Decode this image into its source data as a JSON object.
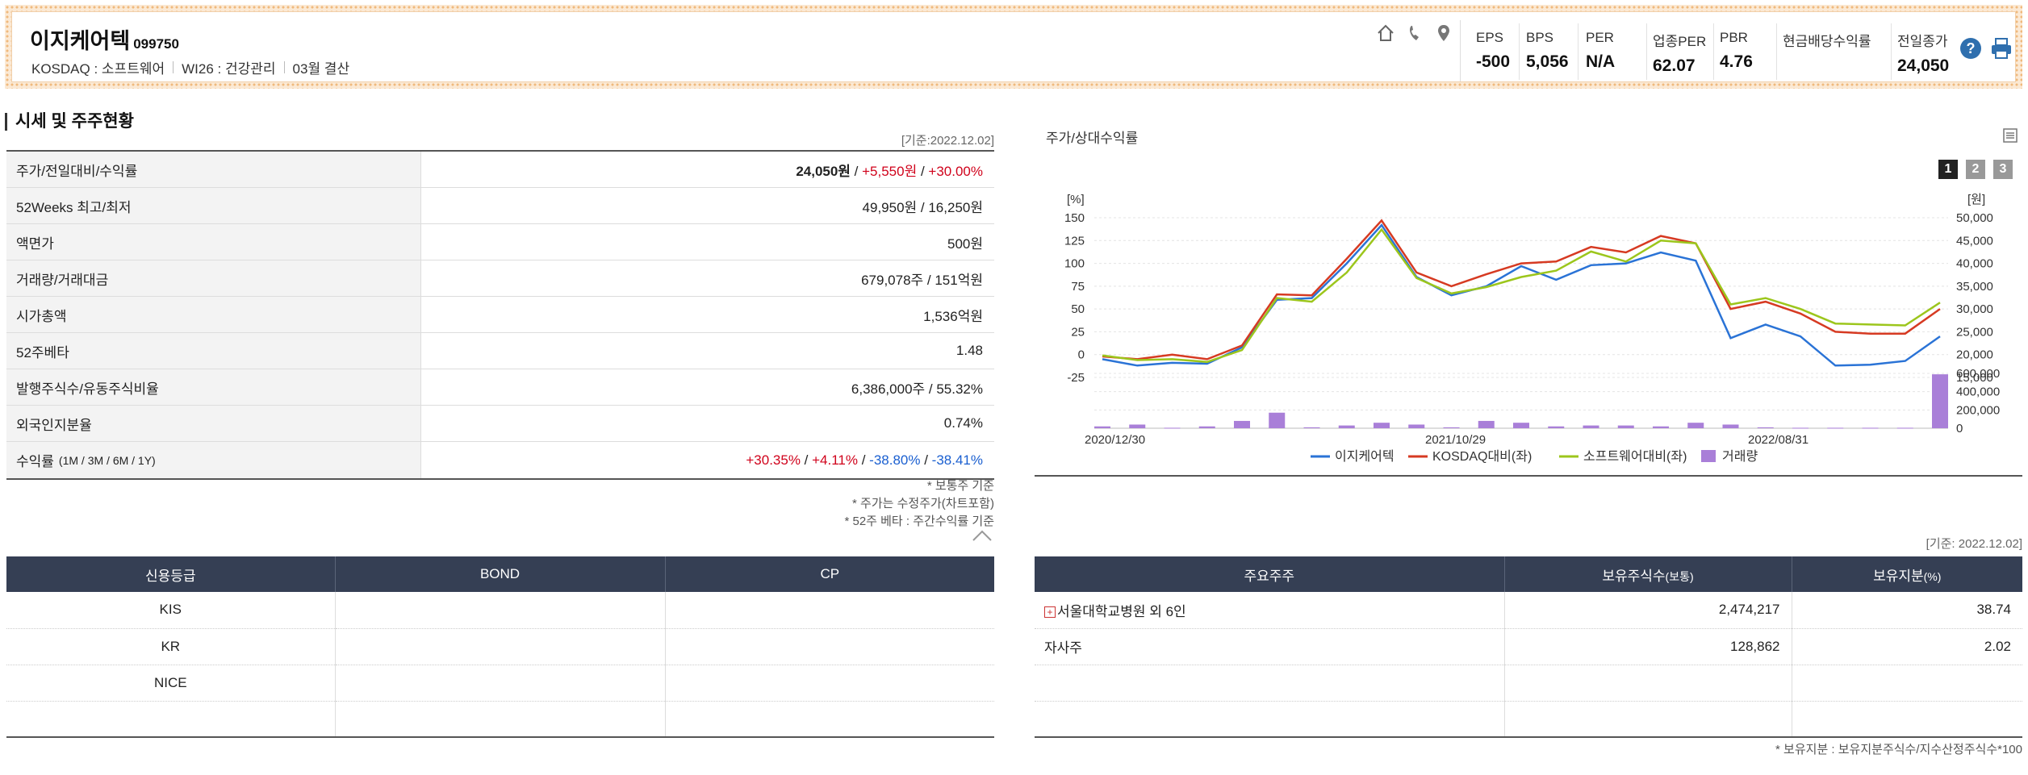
{
  "company": {
    "name": "이지케어텍",
    "code": "099750",
    "market": "KOSDAQ : 소프트웨어",
    "wics": "WI26 : 건강관리",
    "settlement": "03월 결산"
  },
  "icons": [
    "home-icon",
    "phone-icon",
    "location-icon",
    "help-icon",
    "print-icon"
  ],
  "metrics": [
    {
      "label": "EPS",
      "value": "-500"
    },
    {
      "label": "BPS",
      "value": "5,056"
    },
    {
      "label": "PER",
      "value": "N/A"
    },
    {
      "label": "업종PER",
      "value": "62.07"
    },
    {
      "label": "PBR",
      "value": "4.76"
    },
    {
      "label": "현금배당수익률",
      "value": ""
    },
    {
      "label": "전일종가",
      "value": "24,050"
    }
  ],
  "price_section": {
    "title": "시세 및 주주현황",
    "basis": "[기준:2022.12.02]",
    "rows": [
      {
        "label": "주가/전일대비/수익률",
        "parts": [
          [
            "24,050원",
            "bold"
          ],
          [
            " / ",
            ""
          ],
          [
            "+5,550원",
            "red"
          ],
          [
            " / ",
            ""
          ],
          [
            "+30.00%",
            "red"
          ]
        ]
      },
      {
        "label": "52Weeks 최고/최저",
        "parts": [
          [
            "49,950원 / 16,250원",
            ""
          ]
        ]
      },
      {
        "label": "액면가",
        "parts": [
          [
            "500원",
            ""
          ]
        ]
      },
      {
        "label": "거래량/거래대금",
        "parts": [
          [
            "679,078주 / 151억원",
            ""
          ]
        ]
      },
      {
        "label": "시가총액",
        "parts": [
          [
            "1,536억원",
            ""
          ]
        ]
      },
      {
        "label": "52주베타",
        "parts": [
          [
            "1.48",
            ""
          ]
        ]
      },
      {
        "label": "발행주식수/유동주식비율",
        "parts": [
          [
            "6,386,000주 / 55.32%",
            ""
          ]
        ]
      },
      {
        "label": "외국인지분율",
        "parts": [
          [
            "0.74%",
            ""
          ]
        ]
      },
      {
        "label": "수익률",
        "label_suffix": "(1M / 3M / 6M / 1Y)",
        "parts": [
          [
            "+30.35%",
            "red"
          ],
          [
            " / ",
            ""
          ],
          [
            "+4.11%",
            "red"
          ],
          [
            " / ",
            ""
          ],
          [
            "-38.80%",
            "blue"
          ],
          [
            " / ",
            ""
          ],
          [
            "-38.41%",
            "blue"
          ]
        ]
      }
    ],
    "notes": [
      "* 보통주 기준",
      "* 주가는 수정주가(차트포함)",
      "* 52주 베타 : 주간수익률 기준"
    ]
  },
  "credit": {
    "headers": [
      "신용등급",
      "BOND",
      "CP"
    ],
    "rows": [
      [
        "KIS",
        "",
        ""
      ],
      [
        "KR",
        "",
        ""
      ],
      [
        "NICE",
        "",
        ""
      ],
      [
        "",
        "",
        ""
      ]
    ]
  },
  "holders": {
    "basis": "[기준: 2022.12.02]",
    "headers": [
      "주요주주",
      "보유주식수",
      "(보통)",
      "보유지분",
      "(%)"
    ],
    "rows": [
      {
        "name": "서울대학교병원 외 6인",
        "expand": "+",
        "shares": "2,474,217",
        "pct": "38.74"
      },
      {
        "name": "자사주",
        "expand": "",
        "shares": "128,862",
        "pct": "2.02"
      },
      {
        "name": "",
        "expand": "",
        "shares": "",
        "pct": ""
      },
      {
        "name": "",
        "expand": "",
        "shares": "",
        "pct": ""
      }
    ],
    "note": "* 보유지분 : 보유지분주식수/지수산정주식수*100"
  },
  "chart_panel": {
    "title": "주가/상대수익률",
    "pages": [
      "1",
      "2",
      "3"
    ],
    "active_page": "1"
  },
  "chart_data": {
    "type": "line",
    "title": "",
    "x_start": "2020/12/30",
    "x_end": "2022/12/02",
    "x_tick_labels": [
      "2020/12/30",
      "2021/10/29",
      "2022/08/31"
    ],
    "left_unit": "[%]",
    "right_unit": "[원]",
    "left_ticks": [
      150,
      125,
      100,
      75,
      50,
      25,
      0,
      -25
    ],
    "right_ticks": [
      50000,
      45000,
      40000,
      35000,
      30000,
      25000,
      20000,
      15000
    ],
    "volume_ticks": [
      600000,
      400000,
      200000,
      0
    ],
    "ylim_left": [
      -25,
      150
    ],
    "series": [
      {
        "name": "이지케어텍",
        "color": "#2a73d6",
        "values": [
          -5,
          -12,
          -9,
          -10,
          8,
          60,
          62,
          100,
          142,
          85,
          65,
          75,
          97,
          82,
          98,
          100,
          112,
          103,
          18,
          33,
          20,
          -12,
          -11,
          -7,
          20
        ]
      },
      {
        "name": "KOSDAQ대비(좌)",
        "color": "#d63a22",
        "values": [
          -2,
          -5,
          0,
          -5,
          10,
          66,
          65,
          105,
          147,
          90,
          75,
          88,
          100,
          102,
          118,
          112,
          130,
          122,
          50,
          58,
          45,
          25,
          23,
          23,
          50
        ]
      },
      {
        "name": "소프트웨어대비(좌)",
        "color": "#9cc61c",
        "values": [
          -1,
          -6,
          -5,
          -8,
          5,
          62,
          58,
          90,
          137,
          84,
          67,
          74,
          85,
          92,
          113,
          102,
          125,
          122,
          55,
          62,
          50,
          34,
          33,
          32,
          57
        ]
      }
    ],
    "volume": {
      "name": "거래량",
      "color": "#a97fd8",
      "values": [
        20000,
        40000,
        5000,
        20000,
        80000,
        170000,
        10000,
        30000,
        60000,
        40000,
        10000,
        80000,
        60000,
        20000,
        30000,
        30000,
        20000,
        60000,
        40000,
        10000,
        5000,
        5000,
        5000,
        5000,
        590000
      ]
    },
    "legend_placement": "bottom",
    "grid": true
  }
}
